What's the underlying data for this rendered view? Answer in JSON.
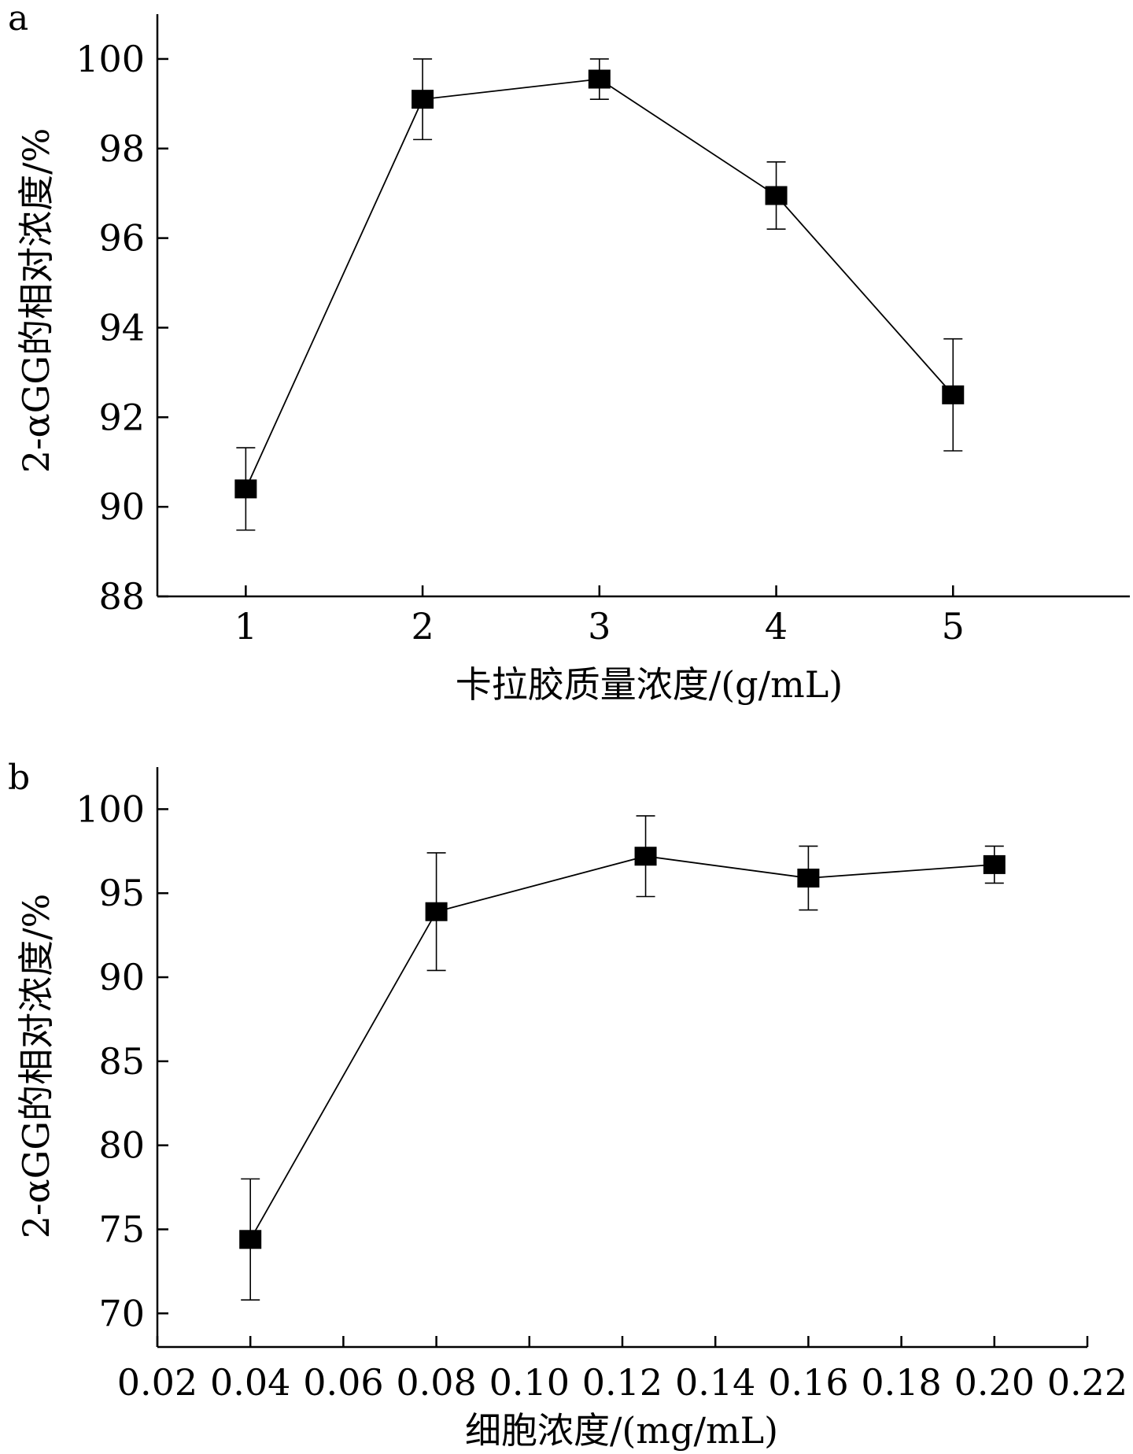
{
  "chart_data": [
    {
      "panel_label": "a",
      "type": "line",
      "xlabel": "卡拉胶质量浓度/(g/mL)",
      "ylabel": "2-αGG的相对浓度/%",
      "x_categorical": true,
      "xlim": [
        0.5,
        6.0
      ],
      "ylim": [
        88,
        101
      ],
      "xticks": [
        1,
        2,
        3,
        4,
        5
      ],
      "xtick_labels": [
        "1",
        "2",
        "3",
        "4",
        "5"
      ],
      "yticks": [
        88,
        90,
        92,
        94,
        96,
        98,
        100
      ],
      "ytick_labels": [
        "88",
        "90",
        "92",
        "94",
        "96",
        "98",
        "100"
      ],
      "marker": "square",
      "series": [
        {
          "x": [
            1,
            2,
            3,
            4,
            5
          ],
          "y": [
            90.4,
            99.1,
            99.55,
            96.95,
            92.5
          ],
          "error": [
            0.92,
            0.9,
            0.45,
            0.75,
            1.25
          ]
        }
      ]
    },
    {
      "panel_label": "b",
      "type": "line",
      "xlabel": "细胞浓度/(mg/mL)",
      "ylabel": "2-αGG的相对浓度/%",
      "x_categorical": false,
      "xlim": [
        0.02,
        0.22
      ],
      "ylim": [
        68,
        102.5
      ],
      "xticks": [
        0.02,
        0.04,
        0.06,
        0.08,
        0.1,
        0.12,
        0.14,
        0.16,
        0.18,
        0.2,
        0.22
      ],
      "xtick_labels": [
        "0.02",
        "0.04",
        "0.06",
        "0.08",
        "0.10",
        "0.12",
        "0.14",
        "0.16",
        "0.18",
        "0.20",
        "0.22"
      ],
      "yticks": [
        70,
        75,
        80,
        85,
        90,
        95,
        100
      ],
      "ytick_labels": [
        "70",
        "75",
        "80",
        "85",
        "90",
        "95",
        "100"
      ],
      "marker": "square",
      "series": [
        {
          "x": [
            0.04,
            0.08,
            0.125,
            0.16,
            0.2
          ],
          "y": [
            74.4,
            93.9,
            97.2,
            95.9,
            96.7
          ],
          "error": [
            3.6,
            3.5,
            2.4,
            1.9,
            1.1
          ]
        }
      ]
    }
  ]
}
